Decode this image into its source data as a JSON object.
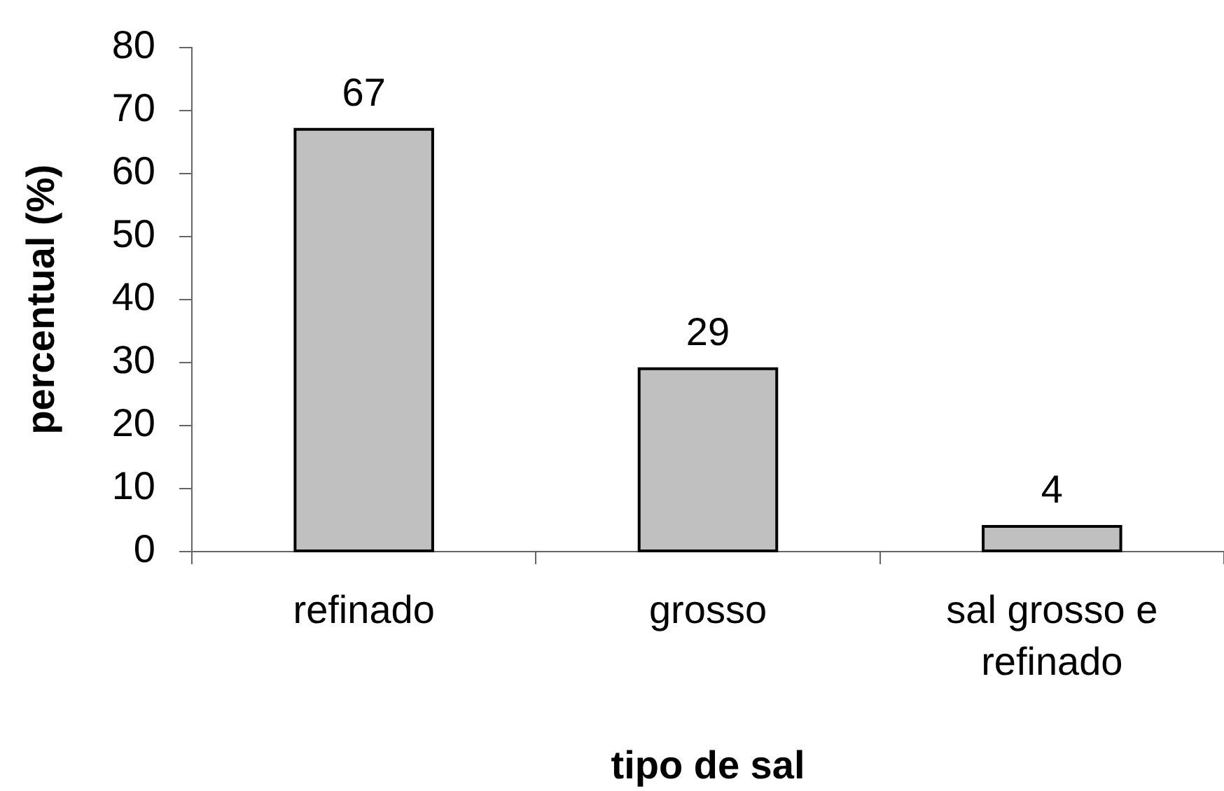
{
  "chart_data": {
    "type": "bar",
    "xlabel": "tipo de sal",
    "ylabel": "percentual (%)",
    "categories": [
      "refinado",
      "grosso",
      "sal grosso e refinado"
    ],
    "values": [
      67,
      29,
      4
    ],
    "color": "#c0c0c0",
    "data_labels": true,
    "ylim": [
      0,
      80
    ],
    "yticks": [
      0,
      10,
      20,
      30,
      40,
      50,
      60,
      70,
      80
    ]
  }
}
